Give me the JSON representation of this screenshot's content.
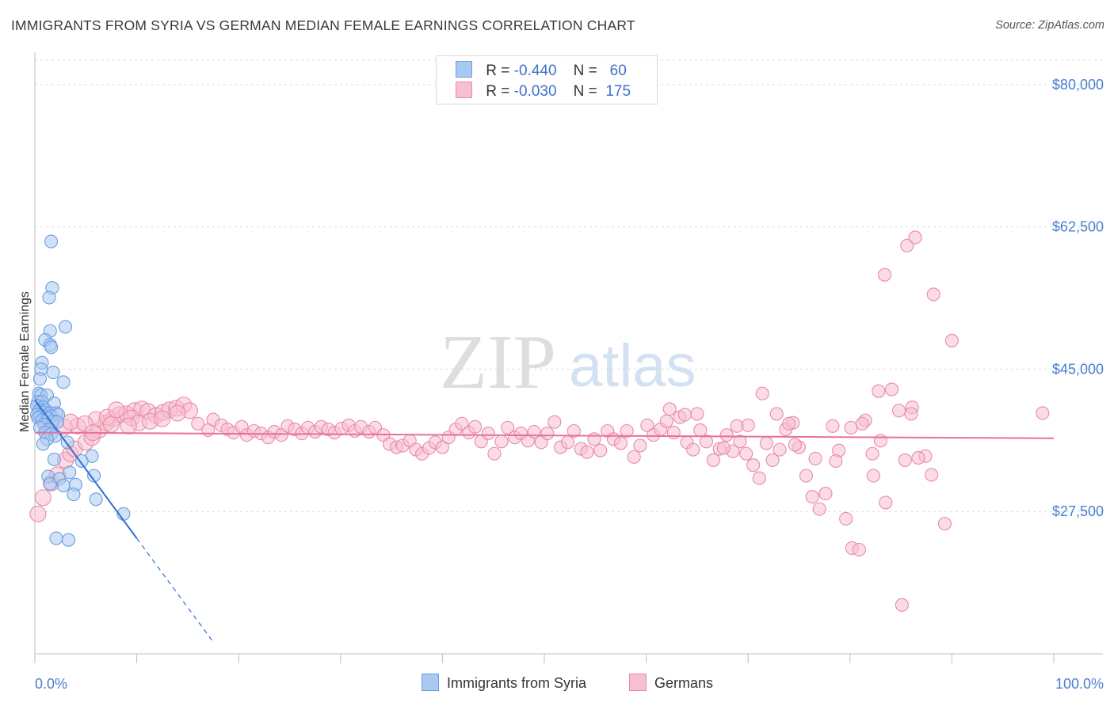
{
  "title": "IMMIGRANTS FROM SYRIA VS GERMAN MEDIAN FEMALE EARNINGS CORRELATION CHART",
  "source": "Source: ZipAtlas.com",
  "watermark": {
    "zip": "ZIP",
    "atlas": "atlas"
  },
  "legend": {
    "rows": [
      {
        "r_label": "R =",
        "r_value": "-0.440",
        "n_label": "N =",
        "n_value": "60",
        "color": "#a9c8f2",
        "stroke": "#6a9ee0"
      },
      {
        "r_label": "R =",
        "r_value": "-0.030",
        "n_label": "N =",
        "n_value": "175",
        "color": "#f7bfd0",
        "stroke": "#e88aa8"
      }
    ]
  },
  "bottom_legend": {
    "syria": {
      "label": "Immigrants from Syria",
      "color": "#a9c8f2",
      "stroke": "#6a9ee0"
    },
    "germans": {
      "label": "Germans",
      "color": "#f7bfd0",
      "stroke": "#e88aa8"
    }
  },
  "chart_data": {
    "type": "scatter",
    "xlabel": "",
    "ylabel": "Median Female Earnings",
    "xlim": [
      0,
      100
    ],
    "ylim": [
      10000,
      83000
    ],
    "x_tick_labels": [
      "0.0%",
      "100.0%"
    ],
    "y_ticks": [
      {
        "value": 80000,
        "label": "$80,000"
      },
      {
        "value": 62500,
        "label": "$62,500"
      },
      {
        "value": 45000,
        "label": "$45,000"
      },
      {
        "value": 27500,
        "label": "$27,500"
      }
    ],
    "series": [
      {
        "name": "Immigrants from Syria",
        "color": "#a9c8f2",
        "stroke": "#6a9ee0",
        "trend": {
          "x1": 0,
          "y1": 41200,
          "x2": 10,
          "y2": 24200,
          "dash_to_x": 17.5,
          "color": "#2f6fd0"
        },
        "points": [
          [
            1.6,
            60.7
          ],
          [
            1.7,
            55.0
          ],
          [
            1.4,
            53.8
          ],
          [
            3.0,
            50.2
          ],
          [
            1.5,
            49.7
          ],
          [
            1.0,
            48.6
          ],
          [
            1.5,
            48.0
          ],
          [
            1.6,
            47.7
          ],
          [
            0.7,
            45.8
          ],
          [
            0.6,
            45.0
          ],
          [
            1.8,
            44.6
          ],
          [
            2.8,
            43.4
          ],
          [
            0.5,
            43.8
          ],
          [
            0.4,
            42.0
          ],
          [
            0.6,
            41.8
          ],
          [
            1.2,
            41.8
          ],
          [
            0.3,
            41.0
          ],
          [
            0.7,
            41.0
          ],
          [
            1.9,
            40.8
          ],
          [
            0.2,
            40.5
          ],
          [
            0.8,
            40.3
          ],
          [
            1.0,
            40.0
          ],
          [
            0.4,
            39.9
          ],
          [
            0.9,
            39.7
          ],
          [
            1.5,
            39.6
          ],
          [
            2.1,
            39.6
          ],
          [
            0.2,
            39.4
          ],
          [
            0.5,
            39.2
          ],
          [
            1.1,
            39.2
          ],
          [
            1.6,
            39.2
          ],
          [
            2.3,
            39.4
          ],
          [
            0.3,
            39.0
          ],
          [
            0.7,
            38.7
          ],
          [
            1.3,
            38.9
          ],
          [
            1.8,
            38.6
          ],
          [
            0.9,
            38.2
          ],
          [
            2.2,
            38.5
          ],
          [
            0.5,
            37.8
          ],
          [
            1.4,
            37.6
          ],
          [
            1.0,
            37.2
          ],
          [
            1.6,
            37.0
          ],
          [
            2.0,
            36.8
          ],
          [
            1.2,
            36.4
          ],
          [
            3.2,
            36.0
          ],
          [
            0.8,
            35.8
          ],
          [
            5.6,
            34.3
          ],
          [
            1.9,
            33.9
          ],
          [
            3.4,
            32.3
          ],
          [
            5.8,
            31.9
          ],
          [
            1.3,
            31.8
          ],
          [
            2.4,
            31.5
          ],
          [
            1.5,
            30.9
          ],
          [
            4.0,
            30.8
          ],
          [
            2.8,
            30.7
          ],
          [
            3.8,
            29.6
          ],
          [
            8.7,
            27.2
          ],
          [
            2.1,
            24.2
          ],
          [
            3.3,
            24.0
          ],
          [
            6.0,
            29.0
          ],
          [
            4.6,
            33.7
          ]
        ]
      },
      {
        "name": "Germans",
        "color": "#f7bfd0",
        "stroke": "#e88aa8",
        "trend": {
          "x1": 0,
          "y1": 37200,
          "x2": 100,
          "y2": 36500,
          "color": "#e8709a"
        },
        "points": [
          [
            0.3,
            27.2
          ],
          [
            0.8,
            29.2
          ],
          [
            1.6,
            31.0
          ],
          [
            2.2,
            32.0
          ],
          [
            3.0,
            33.8
          ],
          [
            3.5,
            34.6
          ],
          [
            3.9,
            35.2
          ],
          [
            5.0,
            36.0
          ],
          [
            5.6,
            36.6
          ],
          [
            6.3,
            37.5
          ],
          [
            7.0,
            38.4
          ],
          [
            7.7,
            38.9
          ],
          [
            8.3,
            39.4
          ],
          [
            9.0,
            39.5
          ],
          [
            9.8,
            39.9
          ],
          [
            10.5,
            40.1
          ],
          [
            11.1,
            39.8
          ],
          [
            11.9,
            39.3
          ],
          [
            12.6,
            39.7
          ],
          [
            13.2,
            40.0
          ],
          [
            13.9,
            40.2
          ],
          [
            14.6,
            40.6
          ],
          [
            15.2,
            39.9
          ],
          [
            4.2,
            38.0
          ],
          [
            6.0,
            38.8
          ],
          [
            7.1,
            39.1
          ],
          [
            8.0,
            40.0
          ],
          [
            9.5,
            39.0
          ],
          [
            10.2,
            38.4
          ],
          [
            11.3,
            38.6
          ],
          [
            12.5,
            38.9
          ],
          [
            14.0,
            39.6
          ],
          [
            1.5,
            38.9
          ],
          [
            2.9,
            37.9
          ],
          [
            3.5,
            38.5
          ],
          [
            4.9,
            38.3
          ],
          [
            5.7,
            37.2
          ],
          [
            7.5,
            38.2
          ],
          [
            9.2,
            38.0
          ],
          [
            16.0,
            38.3
          ],
          [
            17.0,
            37.5
          ],
          [
            17.5,
            38.8
          ],
          [
            18.3,
            38.1
          ],
          [
            18.9,
            37.6
          ],
          [
            19.5,
            37.2
          ],
          [
            20.3,
            37.9
          ],
          [
            20.8,
            36.9
          ],
          [
            21.5,
            37.4
          ],
          [
            22.2,
            37.1
          ],
          [
            22.9,
            36.6
          ],
          [
            23.5,
            37.3
          ],
          [
            24.2,
            36.9
          ],
          [
            24.8,
            38.0
          ],
          [
            25.5,
            37.6
          ],
          [
            26.2,
            37.1
          ],
          [
            26.8,
            37.8
          ],
          [
            27.5,
            37.3
          ],
          [
            28.1,
            37.9
          ],
          [
            28.8,
            37.6
          ],
          [
            29.4,
            37.2
          ],
          [
            30.1,
            37.7
          ],
          [
            30.8,
            38.1
          ],
          [
            31.4,
            37.4
          ],
          [
            32.0,
            37.9
          ],
          [
            32.8,
            37.3
          ],
          [
            33.4,
            37.8
          ],
          [
            34.2,
            36.9
          ],
          [
            34.8,
            35.8
          ],
          [
            35.5,
            35.4
          ],
          [
            36.1,
            35.6
          ],
          [
            36.8,
            36.2
          ],
          [
            37.4,
            35.1
          ],
          [
            38.0,
            34.6
          ],
          [
            38.7,
            35.3
          ],
          [
            39.3,
            36.0
          ],
          [
            40.0,
            35.4
          ],
          [
            40.6,
            36.6
          ],
          [
            41.3,
            37.6
          ],
          [
            41.9,
            38.3
          ],
          [
            42.6,
            37.2
          ],
          [
            43.2,
            37.9
          ],
          [
            43.8,
            36.1
          ],
          [
            44.5,
            37.1
          ],
          [
            45.1,
            34.6
          ],
          [
            45.8,
            36.1
          ],
          [
            46.4,
            37.8
          ],
          [
            47.1,
            36.6
          ],
          [
            47.7,
            37.1
          ],
          [
            48.4,
            36.2
          ],
          [
            49.0,
            37.3
          ],
          [
            49.7,
            36.0
          ],
          [
            50.3,
            37.1
          ],
          [
            51.0,
            38.5
          ],
          [
            51.6,
            35.4
          ],
          [
            52.3,
            36.0
          ],
          [
            52.9,
            37.4
          ],
          [
            53.6,
            35.2
          ],
          [
            54.2,
            34.8
          ],
          [
            54.9,
            36.4
          ],
          [
            55.5,
            35.0
          ],
          [
            56.2,
            37.4
          ],
          [
            56.8,
            36.4
          ],
          [
            57.5,
            35.9
          ],
          [
            58.1,
            37.4
          ],
          [
            58.8,
            34.2
          ],
          [
            59.4,
            35.6
          ],
          [
            60.1,
            38.1
          ],
          [
            60.7,
            36.9
          ],
          [
            61.4,
            37.6
          ],
          [
            62.0,
            38.6
          ],
          [
            62.7,
            37.2
          ],
          [
            63.3,
            39.1
          ],
          [
            64.0,
            36.0
          ],
          [
            64.6,
            35.1
          ],
          [
            65.3,
            37.5
          ],
          [
            65.9,
            36.1
          ],
          [
            66.6,
            33.8
          ],
          [
            67.2,
            35.2
          ],
          [
            67.9,
            36.9
          ],
          [
            68.5,
            34.9
          ],
          [
            69.2,
            36.1
          ],
          [
            69.8,
            34.6
          ],
          [
            70.5,
            33.2
          ],
          [
            71.1,
            31.6
          ],
          [
            71.8,
            35.9
          ],
          [
            72.4,
            33.8
          ],
          [
            73.1,
            35.1
          ],
          [
            73.7,
            37.6
          ],
          [
            74.4,
            38.4
          ],
          [
            75.0,
            35.4
          ],
          [
            75.7,
            31.9
          ],
          [
            76.3,
            29.3
          ],
          [
            77.0,
            27.8
          ],
          [
            77.6,
            29.7
          ],
          [
            78.3,
            38.0
          ],
          [
            78.9,
            35.0
          ],
          [
            79.6,
            26.6
          ],
          [
            80.2,
            23.0
          ],
          [
            80.9,
            22.8
          ],
          [
            81.5,
            38.7
          ],
          [
            82.2,
            34.6
          ],
          [
            82.8,
            42.3
          ],
          [
            83.5,
            28.6
          ],
          [
            84.1,
            42.5
          ],
          [
            84.8,
            39.9
          ],
          [
            85.4,
            33.8
          ],
          [
            86.1,
            40.3
          ],
          [
            87.4,
            34.3
          ],
          [
            88.0,
            32.0
          ],
          [
            89.3,
            26.0
          ],
          [
            90.0,
            48.5
          ],
          [
            62.3,
            40.1
          ],
          [
            63.8,
            39.4
          ],
          [
            65.0,
            39.5
          ],
          [
            67.6,
            35.3
          ],
          [
            68.9,
            38.0
          ],
          [
            70.0,
            38.1
          ],
          [
            71.4,
            42.0
          ],
          [
            72.8,
            39.5
          ],
          [
            74.0,
            38.3
          ],
          [
            74.6,
            35.7
          ],
          [
            76.6,
            34.0
          ],
          [
            78.6,
            33.7
          ],
          [
            80.1,
            37.8
          ],
          [
            81.2,
            38.3
          ],
          [
            82.3,
            31.9
          ],
          [
            86.0,
            39.5
          ],
          [
            88.2,
            54.2
          ],
          [
            83.4,
            56.6
          ],
          [
            85.6,
            60.2
          ],
          [
            86.4,
            61.2
          ],
          [
            98.9,
            39.6
          ],
          [
            85.1,
            16.0
          ],
          [
            86.7,
            34.1
          ],
          [
            83.0,
            36.2
          ]
        ]
      }
    ]
  }
}
